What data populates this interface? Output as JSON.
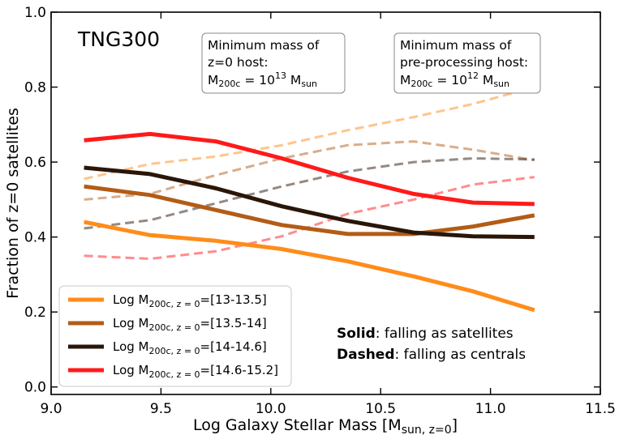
{
  "chart_data": {
    "type": "line",
    "title": "TNG300",
    "xlabel": "Log Galaxy Stellar Mass [M",
    "xlabel_sub": "sun, z=0",
    "xlabel_end": "]",
    "ylabel": "Fraction of z=0 satellites",
    "xlim": [
      9.0,
      11.5
    ],
    "ylim": [
      -0.02,
      1.0
    ],
    "xticks": [
      9.0,
      9.5,
      10.0,
      10.5,
      11.0,
      11.5
    ],
    "xtick_labels": [
      "9.0",
      "9.5",
      "10.0",
      "10.5",
      "11.0",
      "11.5"
    ],
    "yticks": [
      0.0,
      0.2,
      0.4,
      0.6,
      0.8,
      1.0
    ],
    "ytick_labels": [
      "0.0",
      "0.2",
      "0.4",
      "0.6",
      "0.8",
      "1.0"
    ],
    "annotations": {
      "host_box": {
        "line1": "Minimum mass of",
        "line2": "z=0 host:",
        "line3_main": "M",
        "line3_sub": "200c",
        "line3_mid": " = 10",
        "line3_sup": "13",
        "line3_unit": " M",
        "line3_unit_sub": "sun"
      },
      "preproc_box": {
        "line1": "Minimum mass of",
        "line2": "pre-processing host:",
        "line3_main": "M",
        "line3_sub": "200c",
        "line3_mid": " = 10",
        "line3_sup": "12",
        "line3_unit": " M",
        "line3_unit_sub": "sun"
      },
      "solid_key": "Solid",
      "solid_text": ": falling as satellites",
      "dashed_key": "Dashed",
      "dashed_text": ": falling as centrals"
    },
    "legend_position": "lower-left",
    "series": [
      {
        "name": "Log M200c,z=0=[13-13.5]",
        "legend_main": "Log M",
        "legend_sub": "200c, z = 0",
        "legend_range": "=[13-13.5]",
        "color": "#ff8c1a",
        "solid": {
          "x": [
            9.15,
            9.45,
            9.75,
            10.05,
            10.35,
            10.65,
            10.92,
            11.2
          ],
          "y": [
            0.44,
            0.405,
            0.39,
            0.368,
            0.335,
            0.295,
            0.255,
            0.205
          ]
        },
        "dashed": {
          "x": [
            9.15,
            9.45,
            9.75,
            10.05,
            10.35,
            10.65,
            10.92,
            11.2
          ],
          "y": [
            0.555,
            0.595,
            0.615,
            0.645,
            0.685,
            0.72,
            0.755,
            0.8
          ]
        }
      },
      {
        "name": "Log M200c,z=0=[13.5-14]",
        "legend_main": "Log M",
        "legend_sub": "200c, z = 0",
        "legend_range": "=[13.5-14]",
        "color": "#b35c16",
        "solid": {
          "x": [
            9.15,
            9.45,
            9.75,
            10.05,
            10.35,
            10.65,
            10.92,
            11.2
          ],
          "y": [
            0.535,
            0.512,
            0.472,
            0.432,
            0.408,
            0.408,
            0.428,
            0.458
          ]
        },
        "dashed": {
          "x": [
            9.15,
            9.45,
            9.75,
            10.05,
            10.35,
            10.65,
            10.92,
            11.2
          ],
          "y": [
            0.5,
            0.515,
            0.565,
            0.61,
            0.645,
            0.655,
            0.633,
            0.605
          ]
        }
      },
      {
        "name": "Log M200c,z=0=[14-14.6]",
        "legend_main": "Log M",
        "legend_sub": "200c, z = 0",
        "legend_range": "=[14-14.6]",
        "color": "#2a1608",
        "solid": {
          "x": [
            9.15,
            9.45,
            9.75,
            10.05,
            10.35,
            10.65,
            10.92,
            11.2
          ],
          "y": [
            0.585,
            0.568,
            0.53,
            0.482,
            0.443,
            0.412,
            0.402,
            0.4
          ]
        },
        "dashed": {
          "x": [
            9.15,
            9.45,
            9.75,
            10.05,
            10.35,
            10.65,
            10.92,
            11.2
          ],
          "y": [
            0.423,
            0.445,
            0.49,
            0.535,
            0.575,
            0.6,
            0.61,
            0.607
          ]
        }
      },
      {
        "name": "Log M200c,z=0=[14.6-15.2]",
        "legend_main": "Log M",
        "legend_sub": "200c, z = 0",
        "legend_range": "=[14.6-15.2]",
        "color": "#ff1a1a",
        "solid": {
          "x": [
            9.15,
            9.45,
            9.75,
            10.05,
            10.35,
            10.65,
            10.92,
            11.2
          ],
          "y": [
            0.658,
            0.675,
            0.655,
            0.61,
            0.558,
            0.515,
            0.492,
            0.488
          ]
        },
        "dashed": {
          "x": [
            9.15,
            9.45,
            9.75,
            10.05,
            10.35,
            10.65,
            10.92,
            11.2
          ],
          "y": [
            0.35,
            0.342,
            0.362,
            0.402,
            0.462,
            0.5,
            0.54,
            0.56
          ]
        }
      }
    ]
  }
}
